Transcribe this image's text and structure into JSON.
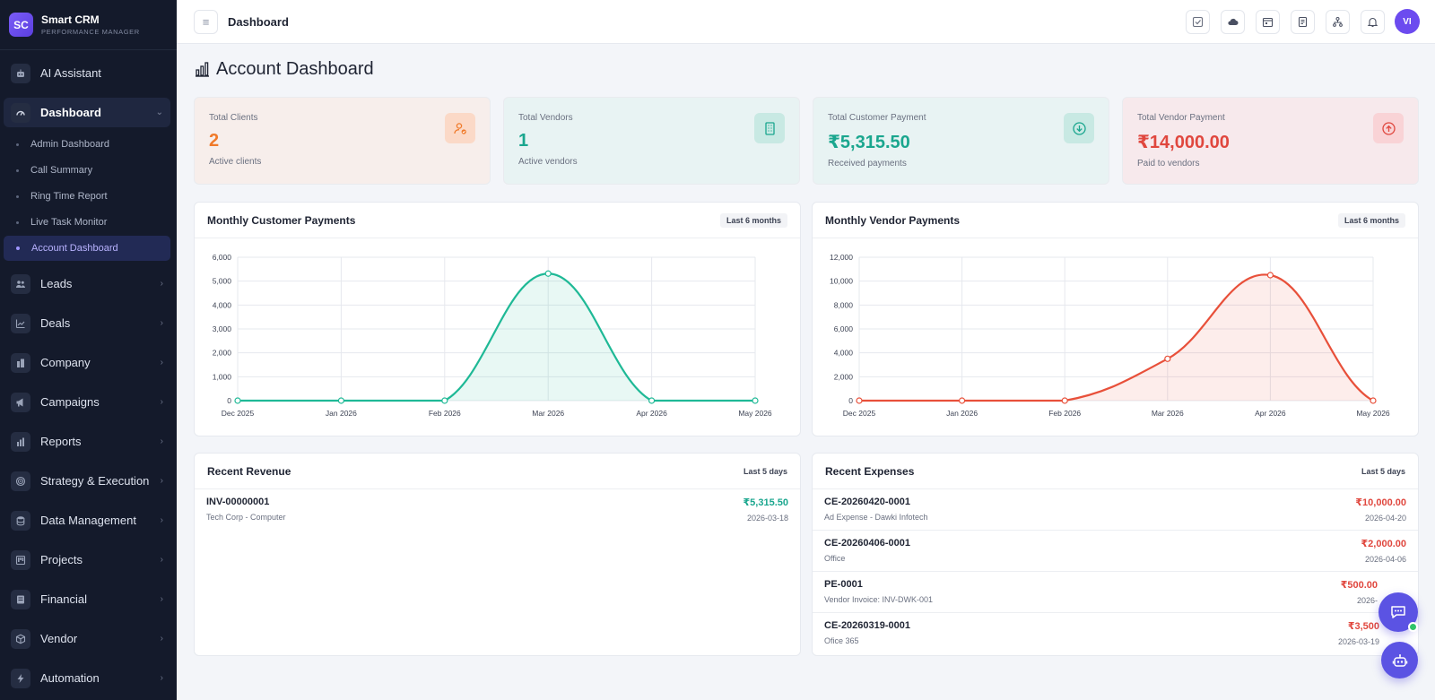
{
  "brand": {
    "logo": "SC",
    "name": "Smart CRM",
    "subtitle": "PERFORMANCE MANAGER"
  },
  "sidebar": {
    "items": [
      {
        "label": "AI Assistant",
        "icon": "robot-icon"
      },
      {
        "label": "Dashboard",
        "icon": "speedometer-icon",
        "expanded": true
      },
      {
        "label": "Leads",
        "icon": "users-icon"
      },
      {
        "label": "Deals",
        "icon": "trend-icon"
      },
      {
        "label": "Company",
        "icon": "building-icon"
      },
      {
        "label": "Campaigns",
        "icon": "megaphone-icon"
      },
      {
        "label": "Reports",
        "icon": "bar-chart-icon"
      },
      {
        "label": "Strategy & Execution",
        "icon": "target-icon"
      },
      {
        "label": "Data Management",
        "icon": "database-icon"
      },
      {
        "label": "Projects",
        "icon": "kanban-icon"
      },
      {
        "label": "Financial",
        "icon": "ledger-icon"
      },
      {
        "label": "Vendor",
        "icon": "box-icon"
      },
      {
        "label": "Automation",
        "icon": "bolt-icon"
      }
    ],
    "dashboard_sub": [
      "Admin Dashboard",
      "Call Summary",
      "Ring Time Report",
      "Live Task Monitor",
      "Account Dashboard"
    ]
  },
  "topbar": {
    "breadcrumb": "Dashboard",
    "actions": [
      "task-check-icon",
      "cloud-icon",
      "calendar-icon",
      "notes-icon",
      "org-chart-icon",
      "bell-icon"
    ],
    "avatar": "VI"
  },
  "page": {
    "title": "Account Dashboard"
  },
  "stats": [
    {
      "label": "Total Clients",
      "value": "2",
      "sub": "Active clients",
      "color": "#f07a2a",
      "bg": "#f7eeeb",
      "icon_bg": "#fbd9c7",
      "icon": "user-check-icon"
    },
    {
      "label": "Total Vendors",
      "value": "1",
      "sub": "Active vendors",
      "color": "#1aa68e",
      "bg": "#e8f3f3",
      "icon_bg": "#c8e9e3",
      "icon": "building-icon"
    },
    {
      "label": "Total Customer Payment",
      "value": "₹5,315.50",
      "sub": "Received payments",
      "color": "#1aa68e",
      "bg": "#e8f3f3",
      "icon_bg": "#c8e9e3",
      "icon": "arrow-down-circle-icon"
    },
    {
      "label": "Total Vendor Payment",
      "value": "₹14,000.00",
      "sub": "Paid to vendors",
      "color": "#e0473e",
      "bg": "#f7e9ec",
      "icon_bg": "#f9d3d6",
      "icon": "arrow-up-circle-icon"
    }
  ],
  "charts": {
    "customer": {
      "title": "Monthly Customer Payments",
      "badge": "Last 6 months"
    },
    "vendor": {
      "title": "Monthly Vendor Payments",
      "badge": "Last 6 months"
    }
  },
  "chart_data": [
    {
      "type": "area",
      "title": "Monthly Customer Payments",
      "categories": [
        "Dec 2025",
        "Jan 2026",
        "Feb 2026",
        "Mar 2026",
        "Apr 2026",
        "May 2026"
      ],
      "values": [
        0,
        0,
        0,
        5315.5,
        0,
        0
      ],
      "ylim": [
        0,
        6000
      ],
      "yticks": [
        "0",
        "1,000",
        "2,000",
        "3,000",
        "4,000",
        "5,000",
        "6,000"
      ],
      "color": "#1fb996",
      "grid": true
    },
    {
      "type": "area",
      "title": "Monthly Vendor Payments",
      "categories": [
        "Dec 2025",
        "Jan 2026",
        "Feb 2026",
        "Mar 2026",
        "Apr 2026",
        "May 2026"
      ],
      "values": [
        0,
        0,
        0,
        3500,
        10500,
        0
      ],
      "ylim": [
        0,
        12000
      ],
      "yticks": [
        "0",
        "2,000",
        "4,000",
        "6,000",
        "8,000",
        "10,000",
        "12,000"
      ],
      "color": "#e8503a",
      "grid": true
    }
  ],
  "revenue": {
    "title": "Recent Revenue",
    "badge": "Last 5 days",
    "rows": [
      {
        "id": "INV-00000001",
        "desc": "Tech Corp - Computer",
        "amount": "₹5,315.50",
        "date": "2026-03-18"
      }
    ]
  },
  "expenses": {
    "title": "Recent Expenses",
    "badge": "Last 5 days",
    "rows": [
      {
        "id": "CE-20260420-0001",
        "desc": "Ad Expense - Dawki Infotech",
        "amount": "₹10,000.00",
        "date": "2026-04-20"
      },
      {
        "id": "CE-20260406-0001",
        "desc": "Office",
        "amount": "₹2,000.00",
        "date": "2026-04-06"
      },
      {
        "id": "PE-0001",
        "desc": "Vendor Invoice: INV-DWK-001",
        "amount": "₹500.00",
        "date": "2026-"
      },
      {
        "id": "CE-20260319-0001",
        "desc": "Ofice 365",
        "amount": "₹3,500",
        "date": "2026-03-19"
      }
    ]
  },
  "colors": {
    "accent": "#5b53e3",
    "positive": "#1aa68e",
    "negative": "#e0473e"
  }
}
